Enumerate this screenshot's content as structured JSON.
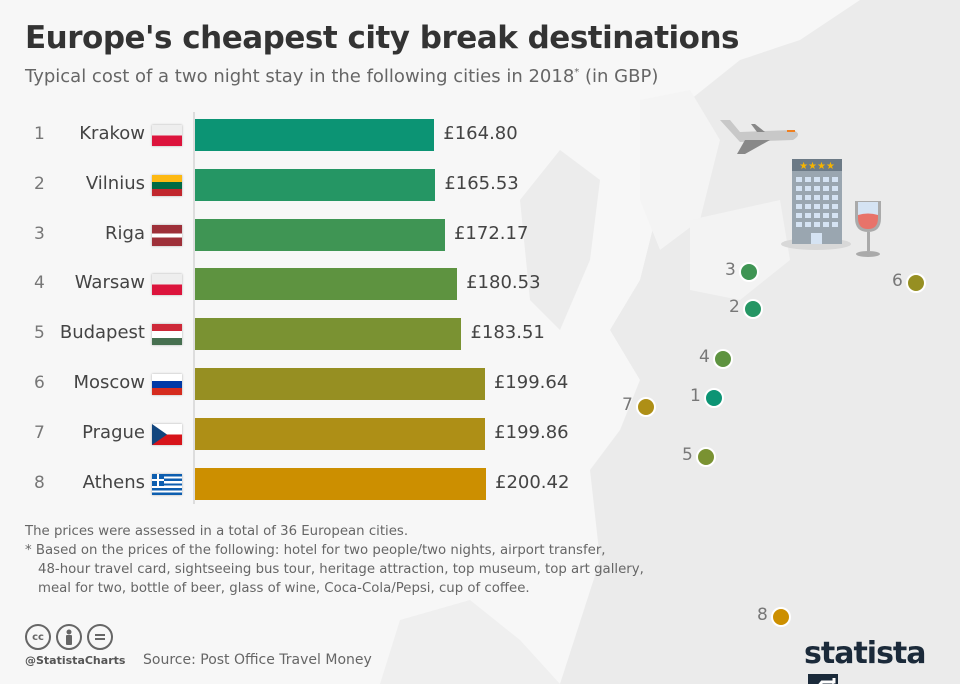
{
  "title": "Europe's cheapest city break destinations",
  "subtitle": "Typical cost of a two night stay in the following cities in 2018",
  "subtitle_mark": "*",
  "subtitle_suffix": " (in GBP)",
  "chart_data": {
    "type": "bar",
    "orientation": "horizontal",
    "title": "Europe's cheapest city break destinations",
    "subtitle": "Typical cost of a two night stay in the following cities in 2018* (in GBP)",
    "xlim": [
      0,
      200.42
    ],
    "grid": false,
    "categories": [
      "Krakow",
      "Vilnius",
      "Riga",
      "Warsaw",
      "Budapest",
      "Moscow",
      "Prague",
      "Athens"
    ],
    "ranks": [
      "1",
      "2",
      "3",
      "4",
      "5",
      "6",
      "7",
      "8"
    ],
    "values": [
      164.8,
      165.53,
      172.17,
      180.53,
      183.51,
      199.64,
      199.86,
      200.42
    ],
    "value_labels": [
      "£164.80",
      "£165.53",
      "£172.17",
      "£180.53",
      "£183.51",
      "£199.64",
      "£199.86",
      "£200.42"
    ],
    "flags": [
      "poland",
      "lithuania",
      "latvia",
      "poland",
      "hungary",
      "russia",
      "czech-republic",
      "greece"
    ],
    "colors": [
      "#0c9474",
      "#259664",
      "#3f9554",
      "#5e9340",
      "#7a9232",
      "#968f22",
      "#ae8f16",
      "#cc8f00"
    ]
  },
  "notes": {
    "line1": "The prices were assessed in a total of 36 European cities.",
    "line2": "* Based on the prices of the following: hotel for two people/two nights, airport transfer,",
    "line3": "48-hour travel card, sightseeing bus tour, heritage attraction, top museum, top art gallery,",
    "line4": "meal for two, bottle of beer, glass of wine, Coca-Cola/Pepsi, cup of coffee."
  },
  "footer": {
    "license_icons": [
      "cc-icon",
      "by-icon",
      "nd-icon"
    ],
    "cc": "cc",
    "handle": "@StatistaCharts",
    "source": "Source: Post Office Travel Money",
    "logo": "statista"
  },
  "illustration_icons": [
    "airplane-icon",
    "hotel-icon",
    "wine-glass-icon"
  ],
  "hotel_stars": "★★★★"
}
